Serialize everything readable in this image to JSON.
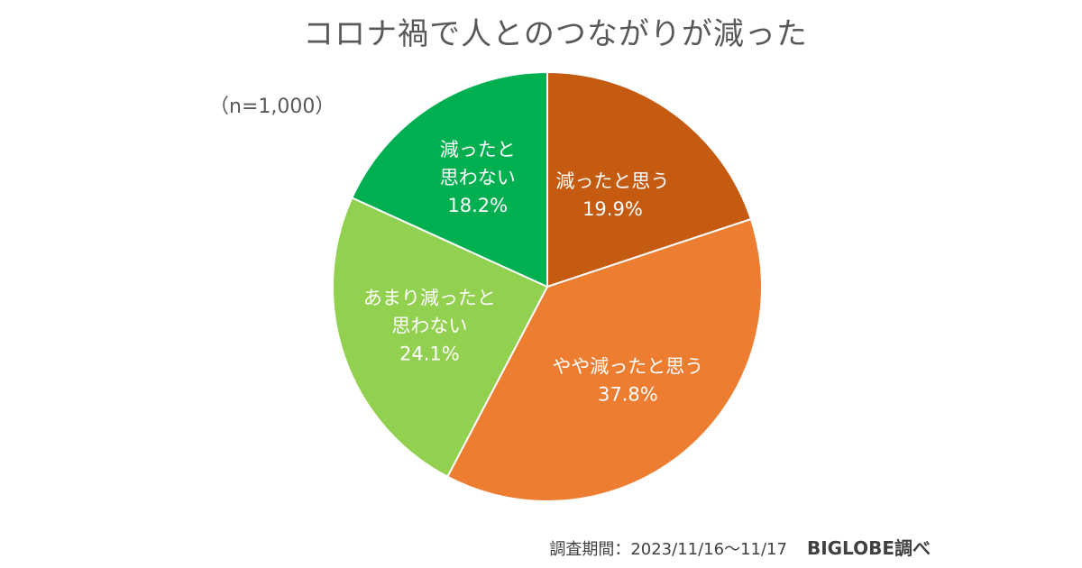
{
  "chart_title": "コロナ禍で人とのつながりが減った",
  "sample_note": "（n=1,000）",
  "survey_period": "調査期間：2023/11/16〜11/17",
  "source": "BIGLOBE調べ",
  "colors": {
    "decreased": "#C55A11",
    "somewhat_decreased": "#ED7D31",
    "not_really_decreased": "#92D050",
    "not_decreased": "#00B050"
  },
  "chart_data": {
    "type": "pie",
    "title": "コロナ禍で人とのつながりが減った",
    "unit": "%",
    "slices": [
      {
        "label_lines": [
          "減ったと思う"
        ],
        "value": 19.9,
        "value_label": "19.9%",
        "color": "#C55A11"
      },
      {
        "label_lines": [
          "やや減ったと思う"
        ],
        "value": 37.8,
        "value_label": "37.8%",
        "color": "#ED7D31"
      },
      {
        "label_lines": [
          "あまり減ったと",
          "思わない"
        ],
        "value": 24.1,
        "value_label": "24.1%",
        "color": "#92D050"
      },
      {
        "label_lines": [
          "減ったと",
          "思わない"
        ],
        "value": 18.2,
        "value_label": "18.2%",
        "color": "#00B050"
      }
    ]
  }
}
